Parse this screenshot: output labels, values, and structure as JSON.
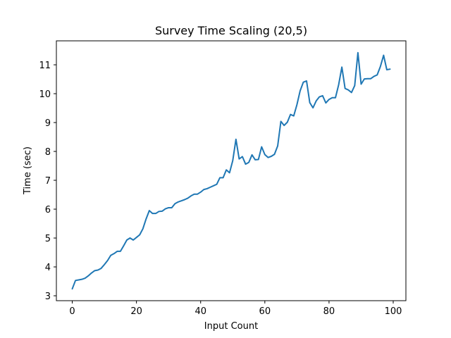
{
  "chart_data": {
    "type": "line",
    "title": "Survey Time Scaling (20,5)",
    "xlabel": "Input Count",
    "ylabel": "Time (sec)",
    "xlim": [
      -4.95,
      103.95
    ],
    "ylim": [
      2.83,
      11.83
    ],
    "xticks": [
      0,
      20,
      40,
      60,
      80,
      100
    ],
    "yticks": [
      3,
      4,
      5,
      6,
      7,
      8,
      9,
      10,
      11
    ],
    "grid": false,
    "line_color": "#1f77b4",
    "series": [
      {
        "x": [
          0,
          1,
          2,
          3,
          4,
          5,
          6,
          7,
          8,
          9,
          10,
          11,
          12,
          13,
          14,
          15,
          16,
          17,
          18,
          19,
          20,
          21,
          22,
          23,
          24,
          25,
          26,
          27,
          28,
          29,
          30,
          31,
          32,
          33,
          34,
          35,
          36,
          37,
          38,
          39,
          40,
          41,
          42,
          43,
          44,
          45,
          46,
          47,
          48,
          49,
          50,
          51,
          52,
          53,
          54,
          55,
          56,
          57,
          58,
          59,
          60,
          61,
          62,
          63,
          64,
          65,
          66,
          67,
          68,
          69,
          70,
          71,
          72,
          73,
          74,
          75,
          76,
          77,
          78,
          79,
          80,
          81,
          82,
          83,
          84,
          85,
          86,
          87,
          88,
          89,
          90,
          91,
          92,
          93,
          94,
          95,
          96,
          97,
          98,
          99
        ],
        "y": [
          3.24,
          3.53,
          3.55,
          3.57,
          3.61,
          3.69,
          3.79,
          3.87,
          3.89,
          3.95,
          4.08,
          4.22,
          4.4,
          4.46,
          4.54,
          4.54,
          4.73,
          4.93,
          5.0,
          4.93,
          5.02,
          5.11,
          5.32,
          5.66,
          5.95,
          5.85,
          5.85,
          5.92,
          5.93,
          6.01,
          6.05,
          6.05,
          6.19,
          6.25,
          6.29,
          6.33,
          6.38,
          6.46,
          6.52,
          6.52,
          6.59,
          6.68,
          6.71,
          6.76,
          6.81,
          6.86,
          7.09,
          7.09,
          7.36,
          7.26,
          7.68,
          8.42,
          7.74,
          7.82,
          7.56,
          7.62,
          7.88,
          7.71,
          7.72,
          8.16,
          7.89,
          7.79,
          7.83,
          7.9,
          8.19,
          9.04,
          8.9,
          9.01,
          9.28,
          9.23,
          9.62,
          10.1,
          10.4,
          10.44,
          9.69,
          9.51,
          9.75,
          9.89,
          9.93,
          9.68,
          9.8,
          9.86,
          9.86,
          10.31,
          10.92,
          10.18,
          10.13,
          10.04,
          10.28,
          11.42,
          10.33,
          10.51,
          10.52,
          10.52,
          10.6,
          10.65,
          10.94,
          11.33,
          10.83,
          10.85
        ]
      }
    ]
  }
}
